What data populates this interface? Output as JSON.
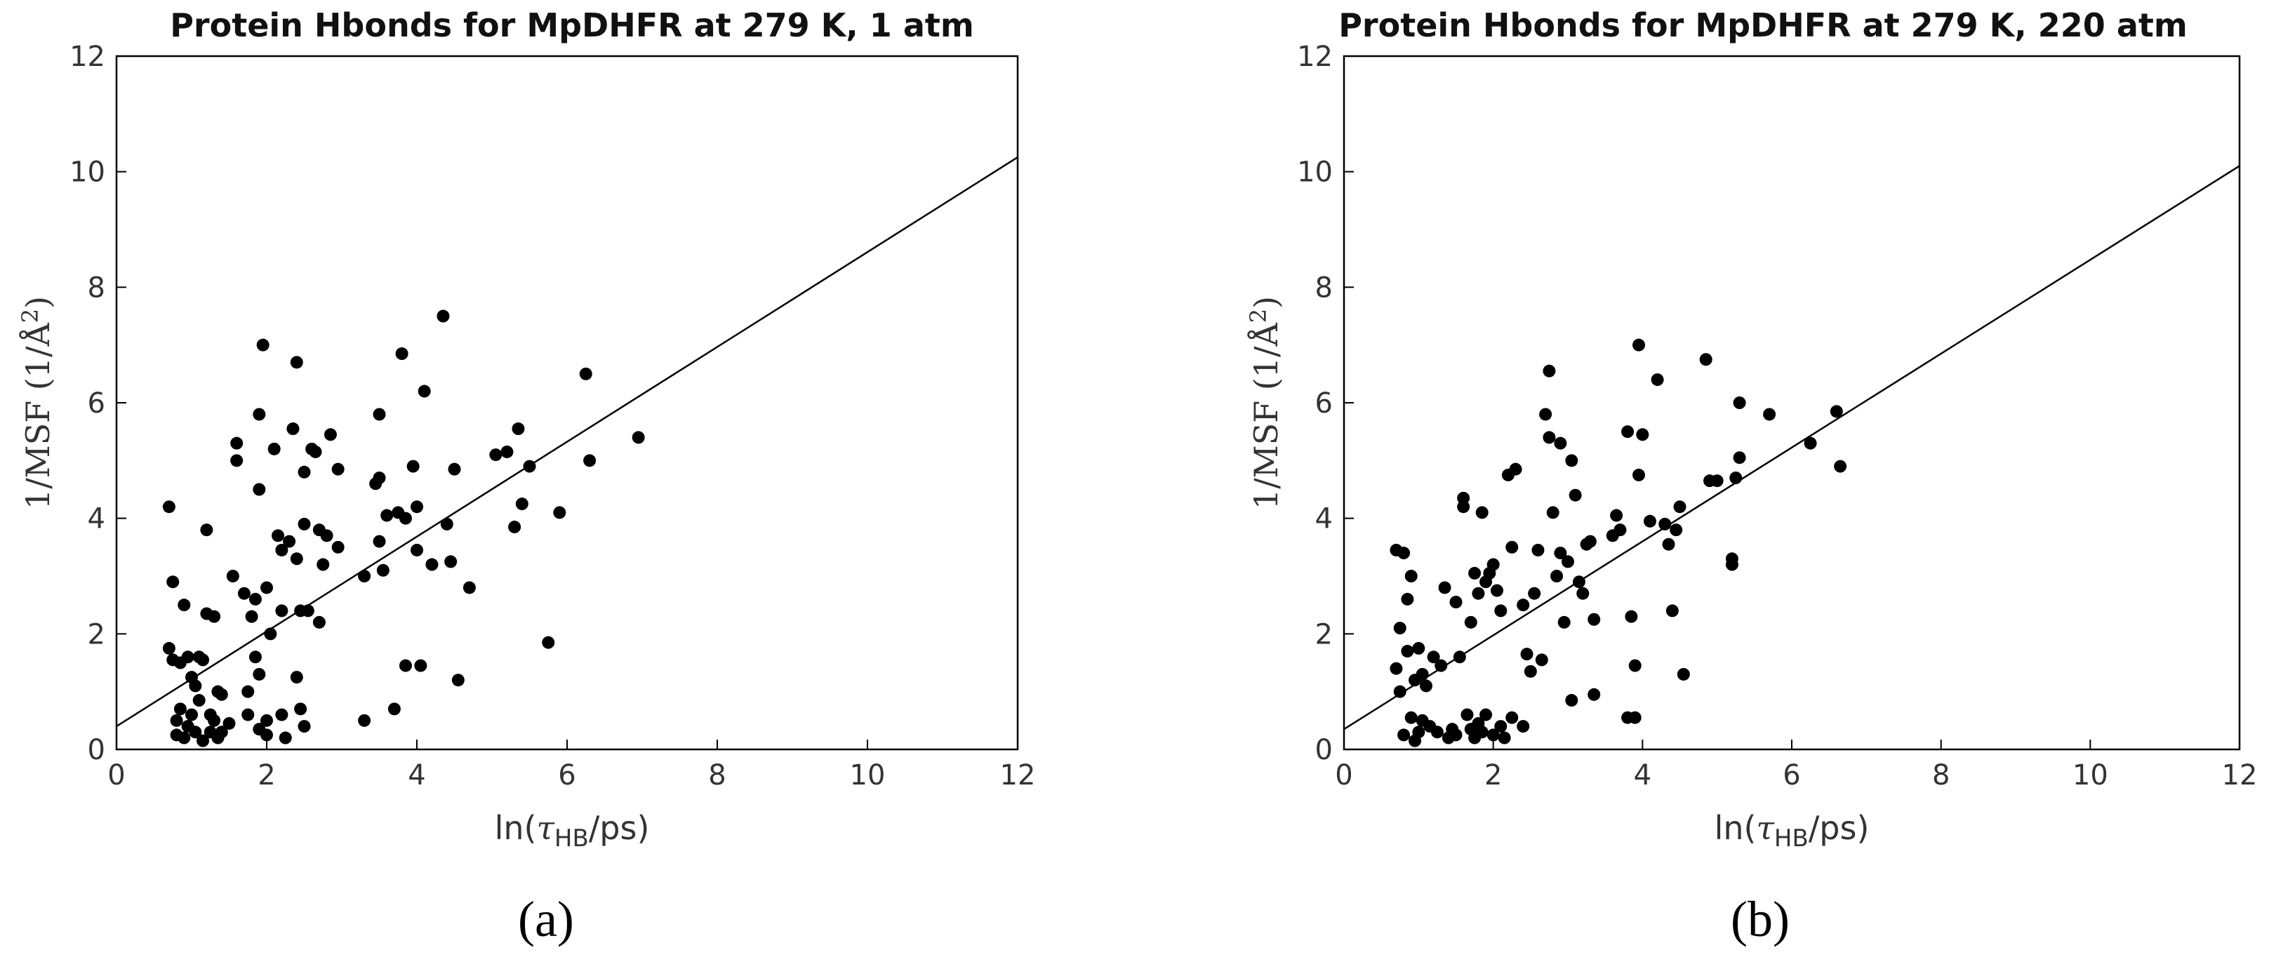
{
  "chart_data": [
    {
      "type": "scatter",
      "title": "Protein Hbonds for MpDHFR at 279 K, 1 atm",
      "xlabel": "ln(τHB/ps)",
      "ylabel": "1/MSF (1/Å²)",
      "xlim": [
        0,
        12
      ],
      "ylim": [
        0,
        12
      ],
      "xticks": [
        "0",
        "2",
        "4",
        "6",
        "8",
        "10",
        "12"
      ],
      "yticks": [
        "0",
        "2",
        "4",
        "6",
        "8",
        "10",
        "12"
      ],
      "grid": false,
      "marker_color": "#000000",
      "panel_label": "a",
      "fit_line": {
        "x": [
          0,
          12
        ],
        "y": [
          0.4,
          10.25
        ]
      },
      "points": [
        [
          0.7,
          1.75
        ],
        [
          0.7,
          4.2
        ],
        [
          0.75,
          2.9
        ],
        [
          0.75,
          1.55
        ],
        [
          0.8,
          0.5
        ],
        [
          0.8,
          0.25
        ],
        [
          0.85,
          0.7
        ],
        [
          0.85,
          1.5
        ],
        [
          0.9,
          2.5
        ],
        [
          0.9,
          0.2
        ],
        [
          0.95,
          1.6
        ],
        [
          0.95,
          0.4
        ],
        [
          1.0,
          1.25
        ],
        [
          1.0,
          0.6
        ],
        [
          1.05,
          1.1
        ],
        [
          1.05,
          0.3
        ],
        [
          1.1,
          1.6
        ],
        [
          1.1,
          0.85
        ],
        [
          1.15,
          1.55
        ],
        [
          1.15,
          0.15
        ],
        [
          1.2,
          3.8
        ],
        [
          1.2,
          2.35
        ],
        [
          1.25,
          0.6
        ],
        [
          1.25,
          0.3
        ],
        [
          1.3,
          2.3
        ],
        [
          1.3,
          0.5
        ],
        [
          1.35,
          1.0
        ],
        [
          1.35,
          0.2
        ],
        [
          1.4,
          0.95
        ],
        [
          1.4,
          0.3
        ],
        [
          1.5,
          0.45
        ],
        [
          1.55,
          3.0
        ],
        [
          1.6,
          5.3
        ],
        [
          1.6,
          5.0
        ],
        [
          1.7,
          2.7
        ],
        [
          1.75,
          1.0
        ],
        [
          1.75,
          0.6
        ],
        [
          1.8,
          2.3
        ],
        [
          1.85,
          2.6
        ],
        [
          1.85,
          1.6
        ],
        [
          1.9,
          5.8
        ],
        [
          1.9,
          4.5
        ],
        [
          1.9,
          1.3
        ],
        [
          1.9,
          0.35
        ],
        [
          1.95,
          7.0
        ],
        [
          2.0,
          2.8
        ],
        [
          2.0,
          0.5
        ],
        [
          2.0,
          0.25
        ],
        [
          2.05,
          2.0
        ],
        [
          2.1,
          5.2
        ],
        [
          2.15,
          3.7
        ],
        [
          2.2,
          3.45
        ],
        [
          2.2,
          2.4
        ],
        [
          2.2,
          0.6
        ],
        [
          2.25,
          0.2
        ],
        [
          2.3,
          3.6
        ],
        [
          2.35,
          5.55
        ],
        [
          2.4,
          6.7
        ],
        [
          2.4,
          3.3
        ],
        [
          2.4,
          1.25
        ],
        [
          2.45,
          2.4
        ],
        [
          2.45,
          0.7
        ],
        [
          2.5,
          4.8
        ],
        [
          2.5,
          3.9
        ],
        [
          2.5,
          0.4
        ],
        [
          2.55,
          2.4
        ],
        [
          2.6,
          5.2
        ],
        [
          2.65,
          5.15
        ],
        [
          2.7,
          3.8
        ],
        [
          2.7,
          2.2
        ],
        [
          2.75,
          3.2
        ],
        [
          2.8,
          3.7
        ],
        [
          2.85,
          5.45
        ],
        [
          2.95,
          3.5
        ],
        [
          2.95,
          4.85
        ],
        [
          3.3,
          3.0
        ],
        [
          3.3,
          0.5
        ],
        [
          3.45,
          4.6
        ],
        [
          3.5,
          5.8
        ],
        [
          3.5,
          4.7
        ],
        [
          3.5,
          3.6
        ],
        [
          3.55,
          3.1
        ],
        [
          3.6,
          4.05
        ],
        [
          3.7,
          0.7
        ],
        [
          3.75,
          4.1
        ],
        [
          3.8,
          6.85
        ],
        [
          3.85,
          4.0
        ],
        [
          3.85,
          1.45
        ],
        [
          3.95,
          4.9
        ],
        [
          4.0,
          4.2
        ],
        [
          4.0,
          3.45
        ],
        [
          4.05,
          1.45
        ],
        [
          4.1,
          6.2
        ],
        [
          4.2,
          3.2
        ],
        [
          4.35,
          7.5
        ],
        [
          4.4,
          3.9
        ],
        [
          4.45,
          3.25
        ],
        [
          4.5,
          4.85
        ],
        [
          4.55,
          1.2
        ],
        [
          4.7,
          2.8
        ],
        [
          5.05,
          5.1
        ],
        [
          5.2,
          5.15
        ],
        [
          5.3,
          3.85
        ],
        [
          5.35,
          5.55
        ],
        [
          5.4,
          4.25
        ],
        [
          5.5,
          4.9
        ],
        [
          5.75,
          1.85
        ],
        [
          5.9,
          4.1
        ],
        [
          6.25,
          6.5
        ],
        [
          6.3,
          5.0
        ],
        [
          6.95,
          5.4
        ]
      ]
    },
    {
      "type": "scatter",
      "title": "Protein Hbonds for MpDHFR at 279 K, 220 atm",
      "xlabel": "ln(τHB/ps)",
      "ylabel": "1/MSF (1/Å²)",
      "xlim": [
        0,
        12
      ],
      "ylim": [
        0,
        12
      ],
      "xticks": [
        "0",
        "2",
        "4",
        "6",
        "8",
        "10",
        "12"
      ],
      "yticks": [
        "0",
        "2",
        "4",
        "6",
        "8",
        "10",
        "12"
      ],
      "grid": false,
      "marker_color": "#000000",
      "panel_label": "b",
      "fit_line": {
        "x": [
          0,
          12
        ],
        "y": [
          0.35,
          10.1
        ]
      },
      "points": [
        [
          0.7,
          3.45
        ],
        [
          0.7,
          1.4
        ],
        [
          0.75,
          2.1
        ],
        [
          0.75,
          1.0
        ],
        [
          0.8,
          3.4
        ],
        [
          0.8,
          0.25
        ],
        [
          0.85,
          2.6
        ],
        [
          0.85,
          1.7
        ],
        [
          0.9,
          3.0
        ],
        [
          0.9,
          0.55
        ],
        [
          0.95,
          1.2
        ],
        [
          0.95,
          0.15
        ],
        [
          1.0,
          1.75
        ],
        [
          1.0,
          0.3
        ],
        [
          1.05,
          1.3
        ],
        [
          1.05,
          0.5
        ],
        [
          1.1,
          1.1
        ],
        [
          1.15,
          0.4
        ],
        [
          1.2,
          1.6
        ],
        [
          1.25,
          0.3
        ],
        [
          1.3,
          1.45
        ],
        [
          1.35,
          2.8
        ],
        [
          1.4,
          0.2
        ],
        [
          1.45,
          0.35
        ],
        [
          1.5,
          2.55
        ],
        [
          1.5,
          0.25
        ],
        [
          1.55,
          1.6
        ],
        [
          1.6,
          4.35
        ],
        [
          1.6,
          4.2
        ],
        [
          1.65,
          0.6
        ],
        [
          1.7,
          2.2
        ],
        [
          1.7,
          0.35
        ],
        [
          1.75,
          3.05
        ],
        [
          1.75,
          0.2
        ],
        [
          1.8,
          2.7
        ],
        [
          1.8,
          0.45
        ],
        [
          1.85,
          4.1
        ],
        [
          1.85,
          0.3
        ],
        [
          1.9,
          2.9
        ],
        [
          1.9,
          0.6
        ],
        [
          1.95,
          3.05
        ],
        [
          2.0,
          3.2
        ],
        [
          2.0,
          0.25
        ],
        [
          2.05,
          2.75
        ],
        [
          2.1,
          2.4
        ],
        [
          2.1,
          0.4
        ],
        [
          2.15,
          0.2
        ],
        [
          2.2,
          4.75
        ],
        [
          2.25,
          3.5
        ],
        [
          2.25,
          0.55
        ],
        [
          2.3,
          4.85
        ],
        [
          2.4,
          2.5
        ],
        [
          2.4,
          0.4
        ],
        [
          2.45,
          1.65
        ],
        [
          2.5,
          1.35
        ],
        [
          2.55,
          2.7
        ],
        [
          2.6,
          3.45
        ],
        [
          2.65,
          1.55
        ],
        [
          2.7,
          5.8
        ],
        [
          2.75,
          6.55
        ],
        [
          2.75,
          5.4
        ],
        [
          2.8,
          4.1
        ],
        [
          2.85,
          3.0
        ],
        [
          2.9,
          5.3
        ],
        [
          2.9,
          3.4
        ],
        [
          2.95,
          2.2
        ],
        [
          3.0,
          3.25
        ],
        [
          3.05,
          5.0
        ],
        [
          3.05,
          0.85
        ],
        [
          3.1,
          4.4
        ],
        [
          3.15,
          2.9
        ],
        [
          3.2,
          2.7
        ],
        [
          3.25,
          3.55
        ],
        [
          3.3,
          3.6
        ],
        [
          3.35,
          2.25
        ],
        [
          3.35,
          0.95
        ],
        [
          3.6,
          3.7
        ],
        [
          3.65,
          4.05
        ],
        [
          3.7,
          3.8
        ],
        [
          3.8,
          5.5
        ],
        [
          3.8,
          0.55
        ],
        [
          3.85,
          2.3
        ],
        [
          3.9,
          1.45
        ],
        [
          3.9,
          0.55
        ],
        [
          3.95,
          7.0
        ],
        [
          3.95,
          4.75
        ],
        [
          4.0,
          5.45
        ],
        [
          4.1,
          3.95
        ],
        [
          4.2,
          6.4
        ],
        [
          4.3,
          3.9
        ],
        [
          4.35,
          3.55
        ],
        [
          4.4,
          2.4
        ],
        [
          4.45,
          3.8
        ],
        [
          4.5,
          4.2
        ],
        [
          4.55,
          1.3
        ],
        [
          4.85,
          6.75
        ],
        [
          4.9,
          4.65
        ],
        [
          5.0,
          4.65
        ],
        [
          5.2,
          3.3
        ],
        [
          5.2,
          3.2
        ],
        [
          5.25,
          4.7
        ],
        [
          5.3,
          6.0
        ],
        [
          5.3,
          5.05
        ],
        [
          5.7,
          5.8
        ],
        [
          6.25,
          5.3
        ],
        [
          6.6,
          5.85
        ],
        [
          6.65,
          4.9
        ]
      ]
    }
  ],
  "panels": {
    "a": {
      "title": "Protein Hbonds for MpDHFR at 279 K, 1 atm",
      "xlabel_prefix": "ln(",
      "xlabel_tau": "τ",
      "xlabel_sub": "HB",
      "xlabel_suffix": "/ps)",
      "ylabel_text": "1/MSF (1/Å",
      "ylabel_sup": "2",
      "ylabel_close": ")",
      "label": "(a)"
    },
    "b": {
      "title": "Protein Hbonds for MpDHFR at 279 K, 220 atm",
      "xlabel_prefix": "ln(",
      "xlabel_tau": "τ",
      "xlabel_sub": "HB",
      "xlabel_suffix": "/ps)",
      "ylabel_text": "1/MSF (1/Å",
      "ylabel_sup": "2",
      "ylabel_close": ")",
      "label": "(b)"
    }
  }
}
